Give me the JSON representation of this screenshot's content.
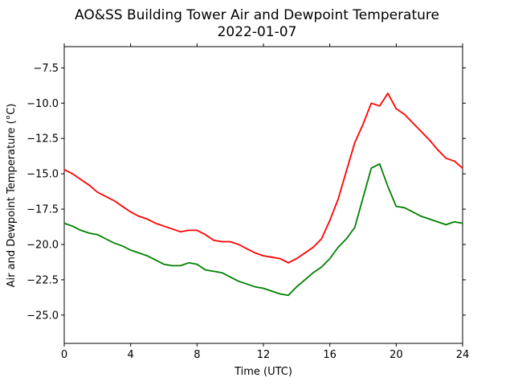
{
  "chart_data": {
    "type": "line",
    "title": "AO&SS Building Tower Air and Dewpoint Temperature",
    "subtitle": "2022-01-07",
    "xlabel": "Time (UTC)",
    "ylabel": "Air and Dewpoint Temperature (°C)",
    "xlim": [
      0,
      24
    ],
    "ylim": [
      -27,
      -6
    ],
    "xticks": [
      0,
      4,
      8,
      12,
      16,
      20,
      24
    ],
    "yticks": [
      -25.0,
      -22.5,
      -20.0,
      -17.5,
      -15.0,
      -12.5,
      -10.0,
      -7.5
    ],
    "ytick_labels": [
      "−25.0",
      "−22.5",
      "−20.0",
      "−17.5",
      "−15.0",
      "−12.5",
      "−10.0",
      "−7.5"
    ],
    "grid": false,
    "series": [
      {
        "color": "#ff0000",
        "x": [
          0,
          0.5,
          1,
          1.5,
          2,
          2.5,
          3,
          3.5,
          4,
          4.5,
          5,
          5.5,
          6,
          6.5,
          7,
          7.5,
          8,
          8.5,
          9,
          9.5,
          10,
          10.5,
          11,
          11.5,
          12,
          12.5,
          13,
          13.5,
          14,
          14.5,
          15,
          15.5,
          16,
          16.5,
          17,
          17.5,
          18,
          18.5,
          19,
          19.5,
          20,
          20.5,
          21,
          21.5,
          22,
          22.5,
          23,
          23.5,
          24
        ],
        "values": [
          -14.7,
          -15.0,
          -15.4,
          -15.8,
          -16.3,
          -16.6,
          -16.9,
          -17.3,
          -17.7,
          -18.0,
          -18.2,
          -18.5,
          -18.7,
          -18.9,
          -19.1,
          -19.0,
          -19.0,
          -19.3,
          -19.7,
          -19.8,
          -19.8,
          -20.0,
          -20.3,
          -20.6,
          -20.8,
          -20.9,
          -21.0,
          -21.3,
          -21.0,
          -20.6,
          -20.2,
          -19.6,
          -18.3,
          -16.8,
          -14.8,
          -12.8,
          -11.5,
          -10.0,
          -10.2,
          -9.3,
          -10.4,
          -10.8,
          -11.4,
          -12.0,
          -12.6,
          -13.3,
          -13.9,
          -14.1,
          -14.6
        ]
      },
      {
        "color": "#008000",
        "x": [
          0,
          0.5,
          1,
          1.5,
          2,
          2.5,
          3,
          3.5,
          4,
          4.5,
          5,
          5.5,
          6,
          6.5,
          7,
          7.5,
          8,
          8.5,
          9,
          9.5,
          10,
          10.5,
          11,
          11.5,
          12,
          12.5,
          13,
          13.5,
          14,
          14.5,
          15,
          15.5,
          16,
          16.5,
          17,
          17.5,
          18,
          18.5,
          19,
          19.5,
          20,
          20.5,
          21,
          21.5,
          22,
          22.5,
          23,
          23.5,
          24
        ],
        "values": [
          -18.5,
          -18.7,
          -19.0,
          -19.2,
          -19.3,
          -19.6,
          -19.9,
          -20.1,
          -20.4,
          -20.6,
          -20.8,
          -21.1,
          -21.4,
          -21.5,
          -21.5,
          -21.3,
          -21.4,
          -21.8,
          -21.9,
          -22.0,
          -22.3,
          -22.6,
          -22.8,
          -23.0,
          -23.1,
          -23.3,
          -23.5,
          -23.6,
          -23.0,
          -22.5,
          -22.0,
          -21.6,
          -21.0,
          -20.2,
          -19.6,
          -18.8,
          -16.7,
          -14.6,
          -14.3,
          -15.9,
          -17.3,
          -17.4,
          -17.7,
          -18.0,
          -18.2,
          -18.4,
          -18.6,
          -18.4,
          -18.5
        ]
      }
    ]
  }
}
